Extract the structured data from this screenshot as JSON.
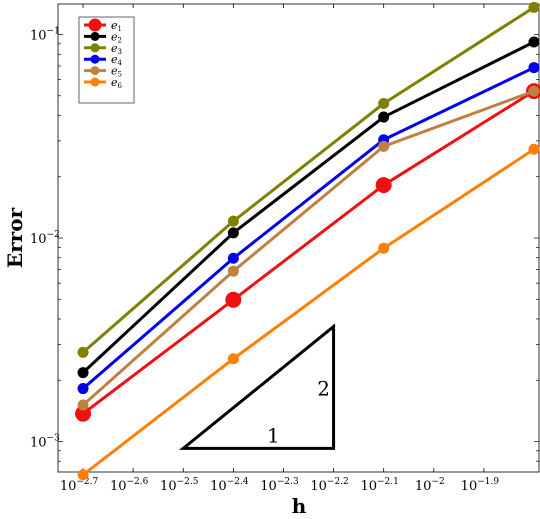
{
  "chart_data": {
    "type": "line",
    "title": "",
    "xlabel": "h",
    "ylabel": "Error",
    "x_scale": "log",
    "y_scale": "log",
    "xlim": [
      -2.75,
      -1.79
    ],
    "ylim": [
      -3.15,
      -0.85
    ],
    "x_ticks": [
      {
        "value": -2.7,
        "base": "10",
        "exp": "−2.7"
      },
      {
        "value": -2.6,
        "base": "10",
        "exp": "−2.6"
      },
      {
        "value": -2.5,
        "base": "10",
        "exp": "−2.5"
      },
      {
        "value": -2.4,
        "base": "10",
        "exp": "−2.4"
      },
      {
        "value": -2.3,
        "base": "10",
        "exp": "−2.3"
      },
      {
        "value": -2.2,
        "base": "10",
        "exp": "−2.2"
      },
      {
        "value": -2.1,
        "base": "10",
        "exp": "−2.1"
      },
      {
        "value": -2.0,
        "base": "10",
        "exp": "−2"
      },
      {
        "value": -1.9,
        "base": "10",
        "exp": "−1.9"
      }
    ],
    "y_ticks": [
      {
        "value": -1,
        "base": "10",
        "exp": "−1"
      },
      {
        "value": -2,
        "base": "10",
        "exp": "−2"
      },
      {
        "value": -3,
        "base": "10",
        "exp": "−3"
      }
    ],
    "legend_position": "top-left",
    "series": [
      {
        "name": "e",
        "sub": "1",
        "color": "#ee1111",
        "big": true,
        "x": [
          -2.7,
          -2.4,
          -2.1,
          -1.8
        ],
        "y": [
          0.00137,
          0.00497,
          0.0182,
          0.0527
        ]
      },
      {
        "name": "e",
        "sub": "2",
        "color": "#000000",
        "big": false,
        "x": [
          -2.7,
          -2.4,
          -2.1,
          -1.8
        ],
        "y": [
          0.00218,
          0.0106,
          0.0393,
          0.0919
        ]
      },
      {
        "name": "e",
        "sub": "3",
        "color": "#808000",
        "big": false,
        "x": [
          -2.7,
          -2.4,
          -2.1,
          -1.8
        ],
        "y": [
          0.00274,
          0.0121,
          0.0458,
          0.136
        ]
      },
      {
        "name": "e",
        "sub": "4",
        "color": "#0000ee",
        "big": false,
        "x": [
          -2.7,
          -2.4,
          -2.1,
          -1.8
        ],
        "y": [
          0.00182,
          0.00795,
          0.0304,
          0.0688
        ]
      },
      {
        "name": "e",
        "sub": "5",
        "color": "#bf8040",
        "big": false,
        "x": [
          -2.7,
          -2.4,
          -2.1,
          -1.8
        ],
        "y": [
          0.00151,
          0.00687,
          0.0282,
          0.0527
        ]
      },
      {
        "name": "e",
        "sub": "6",
        "color": "#ff8000",
        "big": false,
        "x": [
          -2.7,
          -2.4,
          -2.1,
          -1.8
        ],
        "y": [
          0.000686,
          0.00255,
          0.00891,
          0.0273
        ]
      }
    ],
    "slope_triangle": {
      "run_label": "1",
      "rise_label": "2",
      "x": [
        -2.5,
        -2.2
      ],
      "y": [
        0.000925,
        0.00367
      ]
    }
  }
}
